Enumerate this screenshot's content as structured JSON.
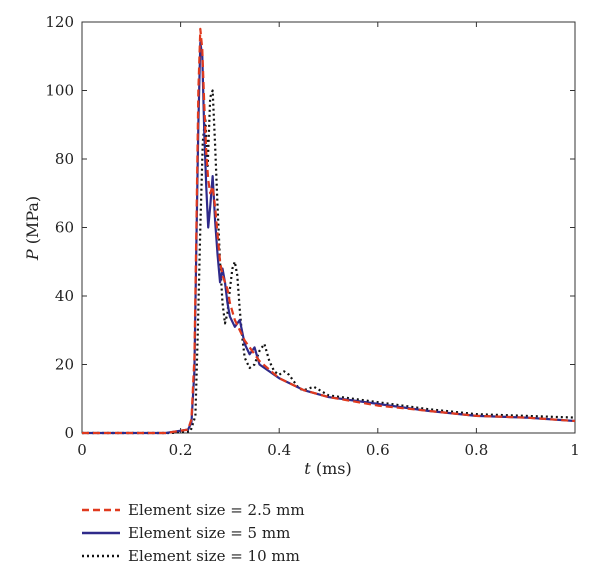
{
  "chart_data": {
    "type": "line",
    "title": "",
    "xlabel": {
      "symbol": "t",
      "unit": " (ms)"
    },
    "ylabel": {
      "symbol": "P",
      "unit": " (MPa)"
    },
    "xlim": [
      0,
      1
    ],
    "ylim": [
      0,
      120
    ],
    "xticks": [
      "0",
      "0.2",
      "0.4",
      "0.6",
      "0.8",
      "1"
    ],
    "yticks": [
      "0",
      "20",
      "40",
      "60",
      "80",
      "100",
      "120"
    ],
    "grid": false,
    "legend_position": "below",
    "series": [
      {
        "name": "Element size = 2.5 mm",
        "color": "#e03a1e",
        "style": "dashed",
        "x": [
          0,
          0.17,
          0.215,
          0.222,
          0.228,
          0.232,
          0.236,
          0.24,
          0.244,
          0.248,
          0.252,
          0.256,
          0.26,
          0.265,
          0.27,
          0.275,
          0.28,
          0.285,
          0.29,
          0.295,
          0.3,
          0.31,
          0.32,
          0.33,
          0.34,
          0.35,
          0.36,
          0.38,
          0.4,
          0.45,
          0.5,
          0.6,
          0.7,
          0.8,
          0.9,
          1.0
        ],
        "y": [
          0,
          0,
          1,
          4,
          22,
          60,
          100,
          118,
          112,
          96,
          82,
          74,
          70,
          72,
          66,
          58,
          50,
          46,
          44,
          42,
          38,
          33,
          30,
          27,
          25,
          23,
          21,
          18.5,
          16,
          12.5,
          10.5,
          8,
          6.5,
          5,
          4.5,
          3.5
        ]
      },
      {
        "name": "Element size = 5 mm",
        "color": "#2f2a8a",
        "style": "solid",
        "x": [
          0,
          0.17,
          0.215,
          0.222,
          0.228,
          0.232,
          0.236,
          0.24,
          0.244,
          0.248,
          0.252,
          0.256,
          0.26,
          0.265,
          0.27,
          0.275,
          0.28,
          0.285,
          0.29,
          0.295,
          0.3,
          0.31,
          0.32,
          0.33,
          0.34,
          0.35,
          0.36,
          0.38,
          0.4,
          0.45,
          0.5,
          0.6,
          0.7,
          0.8,
          0.9,
          1.0
        ],
        "y": [
          0,
          0,
          1,
          3,
          18,
          55,
          90,
          114,
          110,
          88,
          72,
          60,
          66,
          75,
          62,
          52,
          44,
          48,
          44,
          38,
          34,
          31,
          33,
          26,
          23,
          25,
          20,
          18,
          16,
          12.5,
          10.5,
          8.5,
          6.5,
          5,
          4.5,
          3.5
        ]
      },
      {
        "name": "Element size = 10 mm",
        "color": "#111111",
        "style": "dotted",
        "x": [
          0,
          0.18,
          0.22,
          0.23,
          0.235,
          0.24,
          0.245,
          0.25,
          0.255,
          0.26,
          0.265,
          0.27,
          0.275,
          0.28,
          0.285,
          0.29,
          0.295,
          0.3,
          0.305,
          0.31,
          0.315,
          0.32,
          0.325,
          0.33,
          0.34,
          0.35,
          0.36,
          0.37,
          0.38,
          0.39,
          0.4,
          0.41,
          0.42,
          0.43,
          0.44,
          0.45,
          0.47,
          0.5,
          0.6,
          0.7,
          0.8,
          0.9,
          1.0
        ],
        "y": [
          0,
          0,
          0.5,
          5,
          30,
          60,
          85,
          92,
          78,
          98,
          100,
          84,
          66,
          50,
          38,
          32,
          35,
          42,
          48,
          50,
          46,
          36,
          28,
          22,
          19,
          20,
          24,
          26,
          21,
          18,
          17,
          18,
          17,
          15,
          13,
          12.5,
          13.5,
          11,
          9,
          7,
          5.5,
          5,
          4.5
        ]
      }
    ]
  }
}
